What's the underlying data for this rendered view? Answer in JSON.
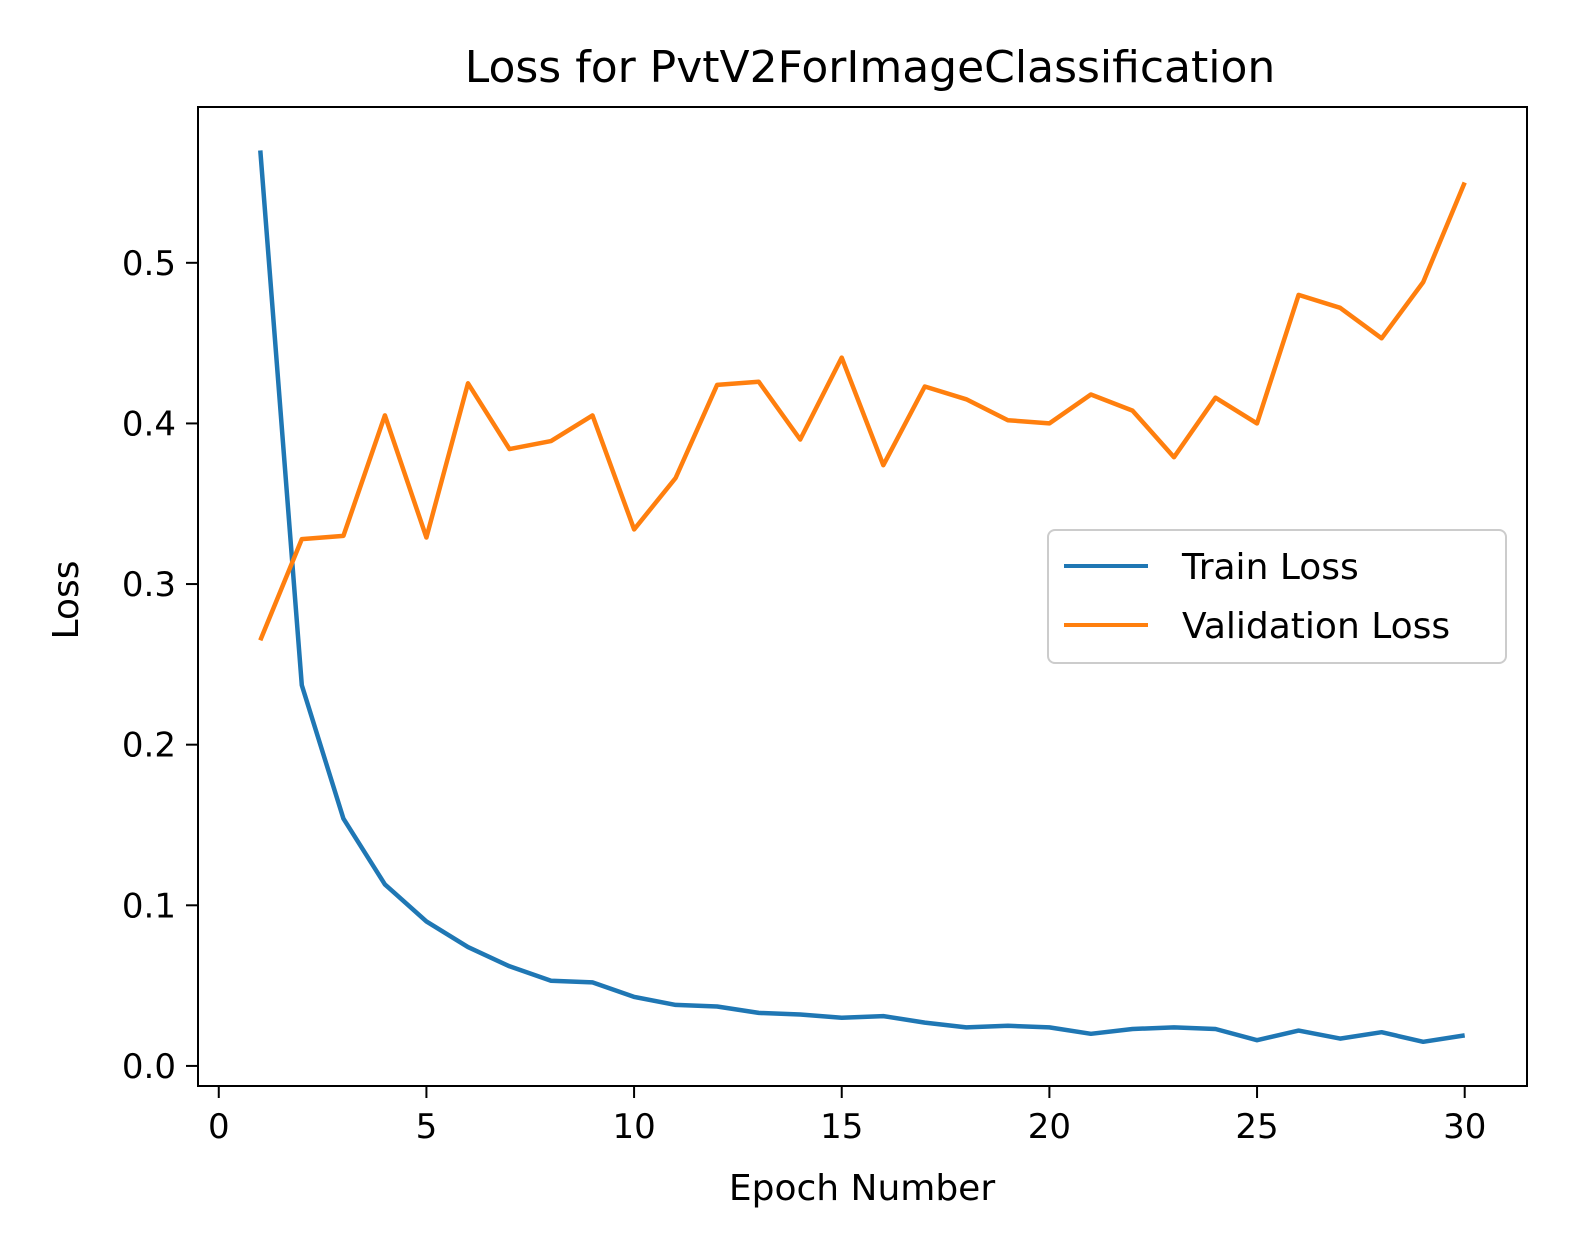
{
  "chart_data": {
    "type": "line",
    "title": "Loss for PvtV2ForImageClassification",
    "xlabel": "Epoch Number",
    "ylabel": "Loss",
    "xlim": [
      -0.5,
      31.5
    ],
    "ylim": [
      -0.0125,
      0.597
    ],
    "xticks": [
      0,
      5,
      10,
      15,
      20,
      25,
      30
    ],
    "xtick_labels": [
      "0",
      "5",
      "10",
      "15",
      "20",
      "25",
      "30"
    ],
    "yticks": [
      0.0,
      0.1,
      0.2,
      0.3,
      0.4,
      0.5
    ],
    "ytick_labels": [
      "0.0",
      "0.1",
      "0.2",
      "0.3",
      "0.4",
      "0.5"
    ],
    "grid": false,
    "legend_position": "center-right",
    "x": [
      1,
      2,
      3,
      4,
      5,
      6,
      7,
      8,
      9,
      10,
      11,
      12,
      13,
      14,
      15,
      16,
      17,
      18,
      19,
      20,
      21,
      22,
      23,
      24,
      25,
      26,
      27,
      28,
      29,
      30
    ],
    "series": [
      {
        "name": "Train Loss",
        "color": "#1f77b4",
        "values": [
          0.57,
          0.237,
          0.154,
          0.113,
          0.09,
          0.074,
          0.062,
          0.053,
          0.052,
          0.043,
          0.038,
          0.037,
          0.033,
          0.032,
          0.03,
          0.031,
          0.027,
          0.024,
          0.025,
          0.024,
          0.02,
          0.023,
          0.024,
          0.023,
          0.016,
          0.022,
          0.017,
          0.021,
          0.015,
          0.019
        ]
      },
      {
        "name": "Validation Loss",
        "color": "#ff7f0e",
        "values": [
          0.265,
          0.328,
          0.33,
          0.405,
          0.329,
          0.425,
          0.384,
          0.389,
          0.405,
          0.334,
          0.366,
          0.424,
          0.426,
          0.39,
          0.441,
          0.374,
          0.423,
          0.415,
          0.402,
          0.4,
          0.418,
          0.408,
          0.379,
          0.416,
          0.4,
          0.48,
          0.472,
          0.453,
          0.488,
          0.55
        ]
      }
    ]
  }
}
